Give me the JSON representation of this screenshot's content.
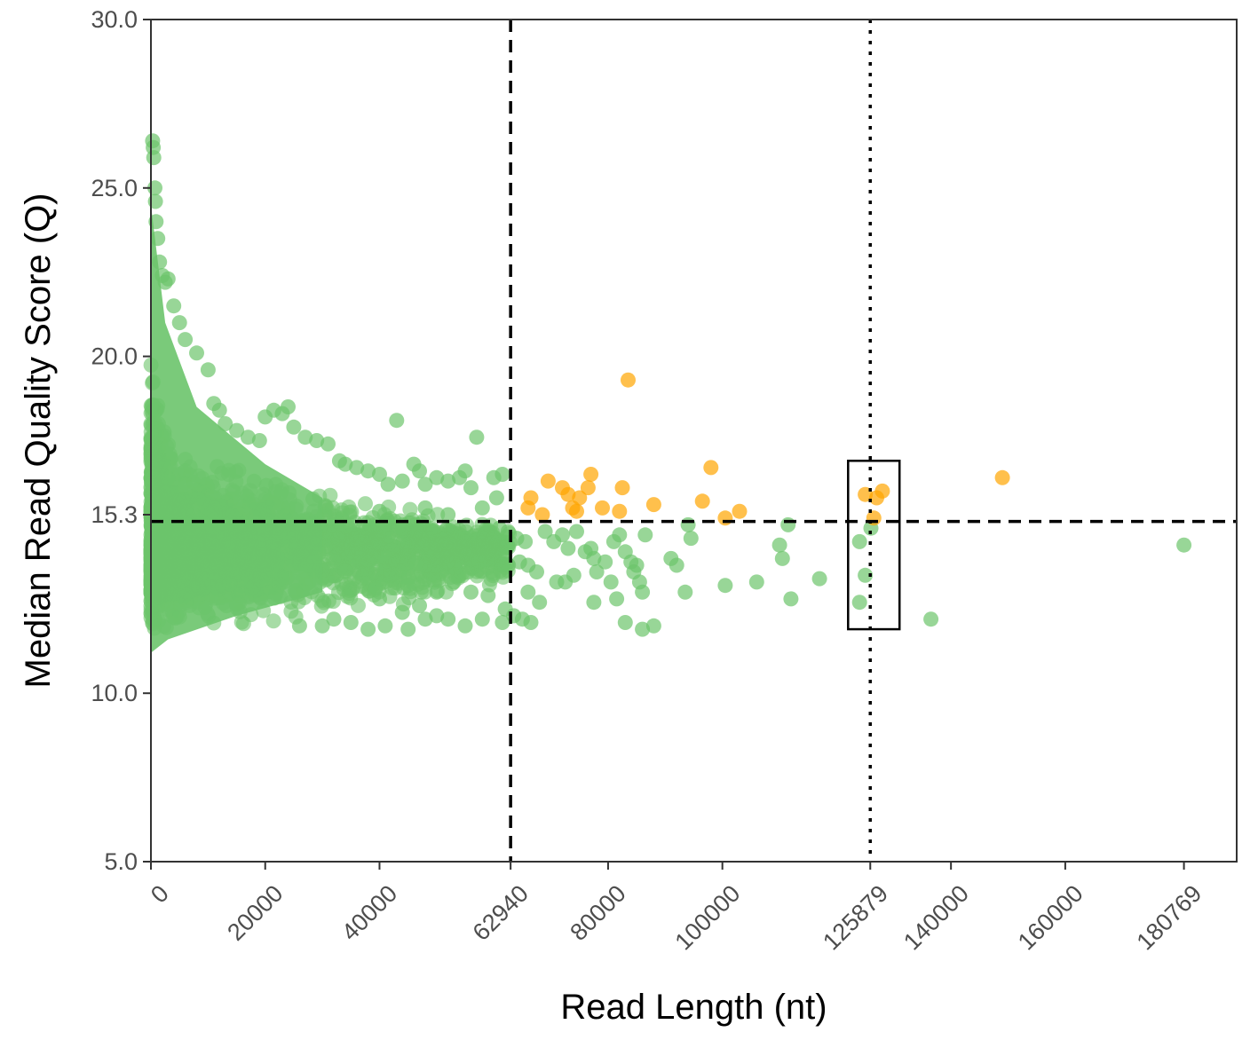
{
  "colors": {
    "green": "#6cc46b",
    "orange": "#ffa500",
    "axis": "#333333",
    "refline": "#000000"
  },
  "chart_data": {
    "type": "scatter",
    "xlabel": "Read Length (nt)",
    "ylabel": "Median Read Quality Score (Q)",
    "xlim": [
      0,
      190000
    ],
    "ylim": [
      5,
      30
    ],
    "grid": false,
    "legend": "none",
    "x_ticks": [
      0,
      20000,
      40000,
      62940,
      80000,
      100000,
      125879,
      140000,
      160000,
      180769
    ],
    "y_ticks": [
      5.0,
      10.0,
      15.3,
      20.0,
      25.0,
      30.0
    ],
    "x_tick_labels": [
      "0",
      "20000",
      "40000",
      "62940",
      "80000",
      "100000",
      "125879",
      "140000",
      "160000",
      "180769"
    ],
    "y_tick_labels": [
      "5.0",
      "10.0",
      "15.3",
      "20.0",
      "25.0",
      "30.0"
    ],
    "reference_lines": [
      {
        "orientation": "vertical",
        "value": 62940,
        "style": "dashed"
      },
      {
        "orientation": "vertical",
        "value": 125879,
        "style": "dotted"
      },
      {
        "orientation": "horizontal",
        "value": 15.1,
        "style": "dashed"
      }
    ],
    "highlight_box": {
      "x": [
        122000,
        131000
      ],
      "y": [
        11.9,
        16.9
      ]
    },
    "dense_region": {
      "x": [
        0,
        62940
      ],
      "y": [
        11.0,
        26.4
      ],
      "note_color": "green"
    },
    "series": [
      {
        "color_key": "green",
        "points": [
          [
            300,
            26.4
          ],
          [
            400,
            26.2
          ],
          [
            500,
            25.9
          ],
          [
            700,
            25.0
          ],
          [
            800,
            24.6
          ],
          [
            900,
            24.0
          ],
          [
            1200,
            23.5
          ],
          [
            1500,
            22.8
          ],
          [
            2000,
            22.4
          ],
          [
            2500,
            22.2
          ],
          [
            3000,
            22.3
          ],
          [
            4000,
            21.5
          ],
          [
            5000,
            21.0
          ],
          [
            6000,
            20.5
          ],
          [
            8000,
            20.1
          ],
          [
            10000,
            19.6
          ],
          [
            11000,
            18.6
          ],
          [
            12000,
            18.4
          ],
          [
            13000,
            18.0
          ],
          [
            15000,
            17.8
          ],
          [
            17000,
            17.6
          ],
          [
            19000,
            17.5
          ],
          [
            20000,
            18.2
          ],
          [
            21500,
            18.4
          ],
          [
            23000,
            18.3
          ],
          [
            24000,
            18.5
          ],
          [
            25000,
            17.9
          ],
          [
            27000,
            17.6
          ],
          [
            29000,
            17.5
          ],
          [
            31000,
            17.4
          ],
          [
            33000,
            16.9
          ],
          [
            34000,
            16.8
          ],
          [
            36000,
            16.7
          ],
          [
            38000,
            16.6
          ],
          [
            40000,
            16.5
          ],
          [
            41500,
            16.2
          ],
          [
            43000,
            18.1
          ],
          [
            44000,
            16.3
          ],
          [
            46000,
            16.8
          ],
          [
            47000,
            16.6
          ],
          [
            48000,
            16.2
          ],
          [
            50000,
            16.4
          ],
          [
            52000,
            16.3
          ],
          [
            54000,
            16.4
          ],
          [
            55000,
            16.6
          ],
          [
            56000,
            16.1
          ],
          [
            57000,
            17.6
          ],
          [
            60000,
            16.4
          ],
          [
            61500,
            16.5
          ],
          [
            60500,
            15.8
          ],
          [
            48000,
            15.5
          ],
          [
            52000,
            15.3
          ],
          [
            58000,
            15.5
          ],
          [
            61000,
            14.9
          ],
          [
            40000,
            15.4
          ],
          [
            44000,
            14.9
          ],
          [
            36000,
            14.6
          ],
          [
            50000,
            14.5
          ],
          [
            55000,
            14.6
          ],
          [
            45000,
            14.2
          ],
          [
            48000,
            13.8
          ],
          [
            51000,
            14.0
          ],
          [
            54000,
            14.3
          ],
          [
            57000,
            14.0
          ],
          [
            59000,
            14.2
          ],
          [
            62000,
            14.3
          ],
          [
            42000,
            13.5
          ],
          [
            45000,
            13.2
          ],
          [
            50000,
            13.0
          ],
          [
            53000,
            13.3
          ],
          [
            56000,
            13.0
          ],
          [
            59000,
            12.9
          ],
          [
            62000,
            12.5
          ],
          [
            40000,
            12.8
          ],
          [
            44000,
            12.4
          ],
          [
            47000,
            12.6
          ],
          [
            50000,
            12.3
          ],
          [
            52000,
            12.2
          ],
          [
            55000,
            12.0
          ],
          [
            58000,
            12.2
          ],
          [
            61500,
            12.1
          ],
          [
            41000,
            12.0
          ],
          [
            45000,
            11.9
          ],
          [
            48000,
            12.2
          ],
          [
            35000,
            12.1
          ],
          [
            38000,
            11.9
          ],
          [
            30000,
            12.0
          ],
          [
            32000,
            12.2
          ],
          [
            26000,
            12.0
          ],
          [
            62500,
            14.8
          ],
          [
            64000,
            14.6
          ],
          [
            65500,
            14.5
          ],
          [
            64500,
            13.9
          ],
          [
            66000,
            13.8
          ],
          [
            67500,
            13.6
          ],
          [
            66000,
            13.0
          ],
          [
            68000,
            12.7
          ],
          [
            63500,
            12.3
          ],
          [
            65000,
            12.2
          ],
          [
            66500,
            12.1
          ],
          [
            69000,
            14.8
          ],
          [
            70500,
            14.5
          ],
          [
            72000,
            14.7
          ],
          [
            73000,
            14.3
          ],
          [
            71000,
            13.3
          ],
          [
            72500,
            13.3
          ],
          [
            74000,
            13.5
          ],
          [
            74500,
            14.8
          ],
          [
            76000,
            14.2
          ],
          [
            77000,
            14.3
          ],
          [
            77500,
            14.0
          ],
          [
            78000,
            13.6
          ],
          [
            79500,
            13.9
          ],
          [
            80500,
            13.3
          ],
          [
            81000,
            14.5
          ],
          [
            82000,
            14.7
          ],
          [
            83000,
            14.2
          ],
          [
            84000,
            13.9
          ],
          [
            84500,
            13.6
          ],
          [
            85000,
            13.8
          ],
          [
            85500,
            13.3
          ],
          [
            86500,
            14.7
          ],
          [
            86000,
            13.0
          ],
          [
            81500,
            12.8
          ],
          [
            77500,
            12.7
          ],
          [
            83000,
            12.1
          ],
          [
            86000,
            11.9
          ],
          [
            88000,
            12.0
          ],
          [
            91000,
            14.0
          ],
          [
            92000,
            13.8
          ],
          [
            93500,
            13.0
          ],
          [
            94000,
            15.0
          ],
          [
            94500,
            14.6
          ],
          [
            100500,
            13.2
          ],
          [
            106000,
            13.3
          ],
          [
            110000,
            14.4
          ],
          [
            110500,
            14.0
          ],
          [
            111500,
            15.0
          ],
          [
            112000,
            12.8
          ],
          [
            117000,
            13.4
          ],
          [
            124000,
            14.5
          ],
          [
            125000,
            13.5
          ],
          [
            124000,
            12.7
          ],
          [
            126000,
            14.9
          ],
          [
            136500,
            12.2
          ],
          [
            180769,
            14.4
          ]
        ]
      },
      {
        "color_key": "orange",
        "points": [
          [
            66000,
            15.5
          ],
          [
            66500,
            15.8
          ],
          [
            68500,
            15.3
          ],
          [
            69500,
            16.3
          ],
          [
            72000,
            16.1
          ],
          [
            73000,
            15.9
          ],
          [
            73800,
            15.5
          ],
          [
            74500,
            15.4
          ],
          [
            75000,
            15.8
          ],
          [
            76500,
            16.1
          ],
          [
            77000,
            16.5
          ],
          [
            79000,
            15.5
          ],
          [
            82000,
            15.4
          ],
          [
            82500,
            16.1
          ],
          [
            83500,
            19.3
          ],
          [
            88000,
            15.6
          ],
          [
            96500,
            15.7
          ],
          [
            98000,
            16.7
          ],
          [
            100500,
            15.2
          ],
          [
            103000,
            15.4
          ],
          [
            125000,
            15.9
          ],
          [
            126500,
            15.2
          ],
          [
            127000,
            15.8
          ],
          [
            128000,
            16.0
          ],
          [
            149000,
            16.4
          ]
        ]
      }
    ]
  }
}
